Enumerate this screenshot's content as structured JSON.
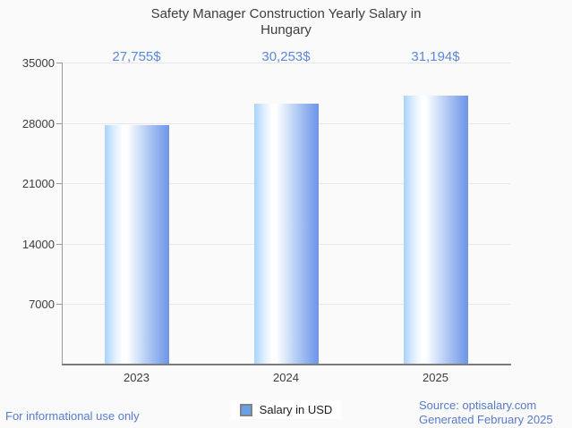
{
  "title": "Safety Manager Construction Yearly Salary in Hungary",
  "chart_data": {
    "type": "bar",
    "categories": [
      "2023",
      "2024",
      "2025"
    ],
    "series": [
      {
        "name": "Salary in USD",
        "values": [
          27755,
          30253,
          31194
        ]
      }
    ],
    "value_labels": [
      "27,755$",
      "30,253$",
      "31,194$"
    ],
    "title": "Safety Manager Construction Yearly Salary in Hungary",
    "xlabel": "",
    "ylabel": "",
    "ylim": [
      0,
      35000
    ],
    "yticks": [
      7000,
      14000,
      21000,
      28000,
      35000
    ],
    "grid": true,
    "legend_position": "bottom",
    "bar_gradient": [
      "#a8d3fa",
      "#ffffff",
      "#6e95e8"
    ],
    "value_label_color": "#5c87db"
  },
  "legend": {
    "label": "Salary in USD",
    "swatch_color": "#69a1e7"
  },
  "footer": {
    "disclaimer": "For informational use only",
    "source": "Source: optisalary.com",
    "generated": "Generated February 2025"
  },
  "colors": {
    "background": "#fafafa",
    "title_text": "#3d3d3d",
    "axis_text": "#3c3c3c",
    "blue_text": "#567bce",
    "gridline": "#e7e7e7"
  }
}
